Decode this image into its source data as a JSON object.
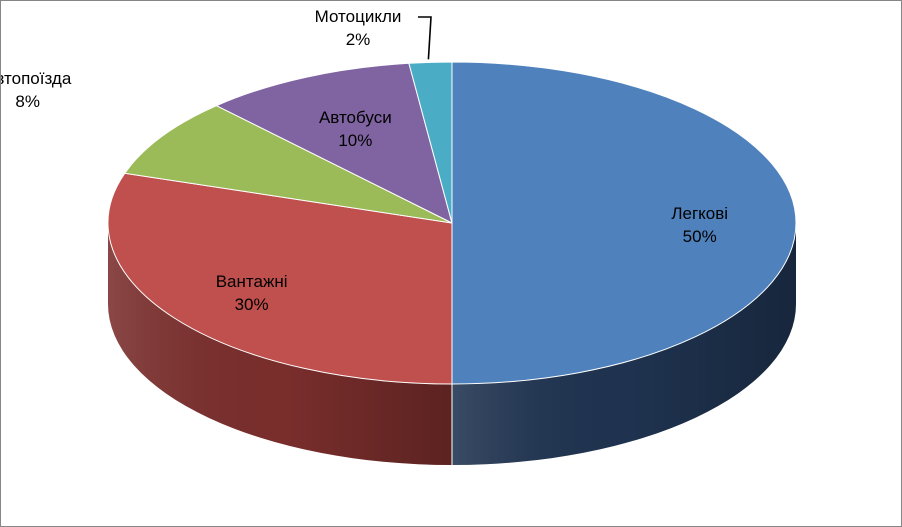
{
  "chart_data": {
    "type": "pie",
    "categories": [
      "Легкові",
      "Вантажні",
      "Автопоїзда",
      "Автобуси",
      "Мотоцикли"
    ],
    "values": [
      50,
      30,
      8,
      10,
      2
    ],
    "value_labels": [
      "50%",
      "30%",
      "8%",
      "10%",
      "2%"
    ],
    "colors": [
      "#4F81BD",
      "#C0504D",
      "#9BBB59",
      "#8064A2",
      "#4BACC6"
    ],
    "side_colors": [
      "#1F3350",
      "#7A2E2C",
      "#61772F",
      "#4E3C66",
      "#2B7385"
    ],
    "title": "",
    "legend": "none",
    "style": "3d"
  }
}
